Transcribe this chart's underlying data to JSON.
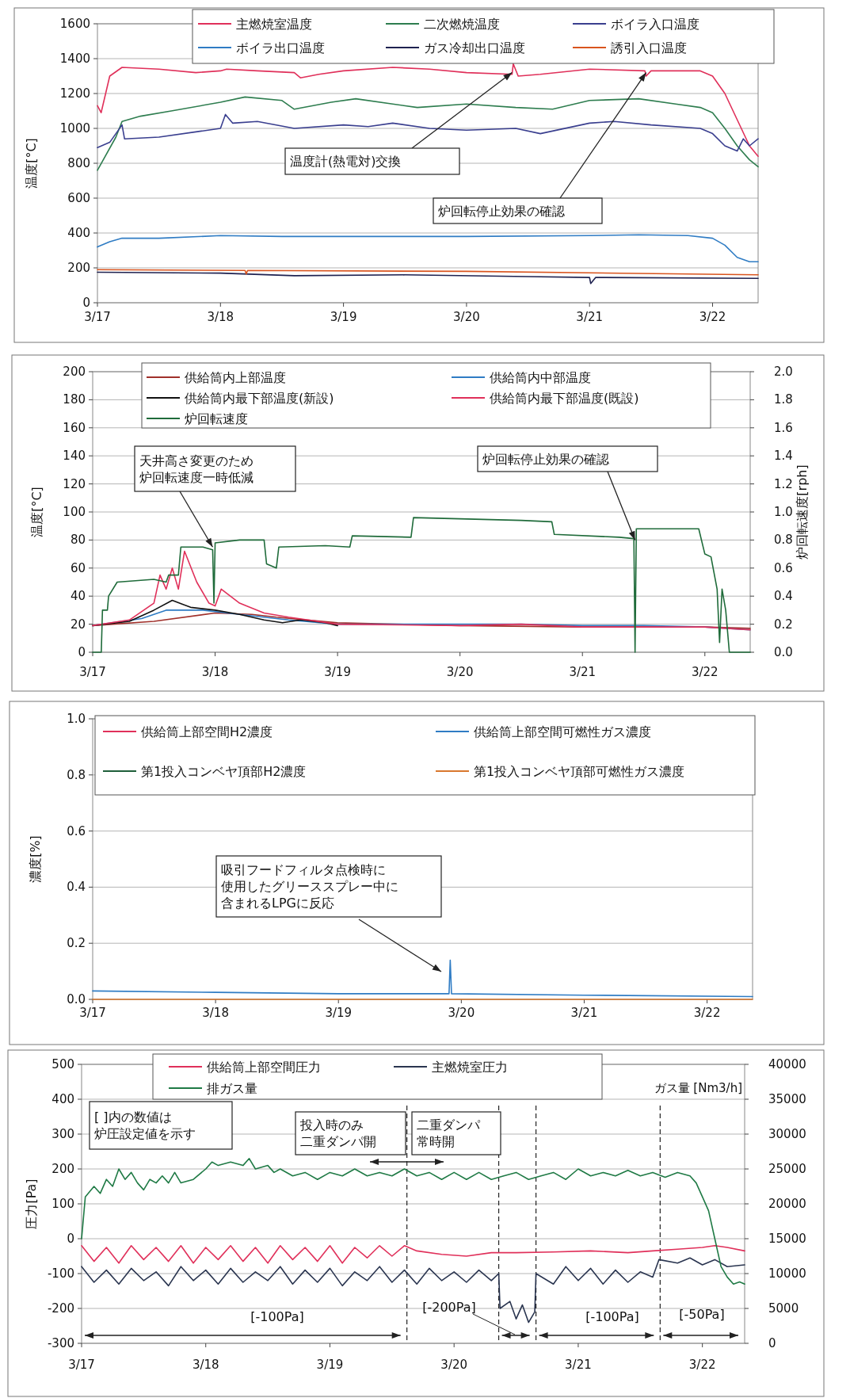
{
  "chart_data": [
    {
      "type": "line",
      "ylabel": "温度[°C]",
      "xlim": [
        "--03-17T00:00",
        "--03-22T08:53"
      ],
      "ylim": [
        0,
        1600
      ],
      "yticks": [
        0,
        200,
        400,
        600,
        800,
        1000,
        1200,
        1400,
        1600
      ],
      "xticks": [
        {
          "value": "--03-17",
          "label": "3/17"
        },
        {
          "value": "--03-18",
          "label": "3/18"
        },
        {
          "value": "--03-19",
          "label": "3/19"
        },
        {
          "value": "--03-20",
          "label": "3/20"
        },
        {
          "value": "--03-21",
          "label": "3/21"
        },
        {
          "value": "--03-22",
          "label": "3/22"
        }
      ],
      "grid": "y",
      "legend": "top",
      "series": [
        {
          "name": "主燃焼室温度",
          "color": "#e0305a",
          "x": [
            "--03-17T00:00",
            "--03-17T00:43",
            "--03-17T02:24",
            "--03-17T04:48",
            "--03-17T12:00",
            "--03-17T19:12",
            "--03-18T00:00",
            "--03-18T01:12",
            "--03-18T07:12",
            "--03-18T14:24",
            "--03-18T15:36",
            "--03-18T19:12",
            "--03-19T00:00",
            "--03-19T09:36",
            "--03-19T16:48",
            "--03-20T00:00",
            "--03-20T08:53",
            "--03-20T09:07",
            "--03-20T10:05",
            "--03-20T14:24",
            "--03-21T00:00",
            "--03-21T10:48",
            "--03-21T11:02",
            "--03-21T12:00",
            "--03-21T21:36",
            "--03-22T00:00",
            "--03-22T02:24",
            "--03-22T04:48",
            "--03-22T07:12",
            "--03-22T08:53"
          ],
          "values": [
            1130,
            1090,
            1300,
            1350,
            1340,
            1320,
            1330,
            1340,
            1330,
            1320,
            1290,
            1310,
            1330,
            1350,
            1340,
            1320,
            1310,
            1370,
            1300,
            1310,
            1340,
            1330,
            1300,
            1330,
            1330,
            1300,
            1200,
            1050,
            900,
            840
          ]
        },
        {
          "name": "二次燃焼温度",
          "color": "#2e7d4f",
          "x": [
            "--03-17T00:00",
            "--03-17T03:36",
            "--03-17T04:48",
            "--03-17T08:24",
            "--03-17T14:24",
            "--03-18T00:00",
            "--03-18T04:48",
            "--03-18T12:00",
            "--03-18T14:24",
            "--03-18T21:36",
            "--03-19T02:24",
            "--03-19T09:36",
            "--03-19T14:24",
            "--03-20T00:00",
            "--03-20T09:36",
            "--03-20T16:48",
            "--03-21T00:00",
            "--03-21T09:36",
            "--03-21T16:48",
            "--03-21T21:36",
            "--03-22T00:00",
            "--03-22T02:24",
            "--03-22T04:48",
            "--03-22T07:12",
            "--03-22T08:53"
          ],
          "values": [
            760,
            950,
            1040,
            1070,
            1100,
            1150,
            1180,
            1160,
            1110,
            1150,
            1170,
            1140,
            1120,
            1140,
            1120,
            1110,
            1160,
            1170,
            1140,
            1120,
            1090,
            1000,
            900,
            820,
            780
          ]
        },
        {
          "name": "ボイラ入口温度",
          "color": "#3a3f8f",
          "x": [
            "--03-17T00:00",
            "--03-17T02:24",
            "--03-17T04:48",
            "--03-17T05:17",
            "--03-17T12:00",
            "--03-17T19:12",
            "--03-18T00:00",
            "--03-18T00:58",
            "--03-18T02:24",
            "--03-18T07:12",
            "--03-18T14:24",
            "--03-19T00:00",
            "--03-19T04:48",
            "--03-19T09:36",
            "--03-19T16:48",
            "--03-20T00:00",
            "--03-20T09:36",
            "--03-20T14:24",
            "--03-21T00:00",
            "--03-21T04:48",
            "--03-21T12:00",
            "--03-21T21:36",
            "--03-22T00:00",
            "--03-22T02:24",
            "--03-22T04:48",
            "--03-22T06:00",
            "--03-22T07:12",
            "--03-22T08:53"
          ],
          "values": [
            890,
            920,
            1020,
            940,
            950,
            980,
            1000,
            1080,
            1030,
            1040,
            1000,
            1020,
            1010,
            1030,
            1000,
            990,
            1000,
            970,
            1030,
            1040,
            1020,
            1000,
            970,
            900,
            870,
            940,
            900,
            940
          ]
        },
        {
          "name": "ボイラ出口温度",
          "color": "#2f7cc4",
          "x": [
            "--03-17T00:00",
            "--03-17T02:24",
            "--03-17T04:48",
            "--03-17T12:00",
            "--03-18T00:00",
            "--03-18T12:00",
            "--03-19T00:00",
            "--03-20T00:00",
            "--03-21T00:00",
            "--03-21T09:36",
            "--03-21T19:12",
            "--03-22T00:00",
            "--03-22T02:24",
            "--03-22T04:48",
            "--03-22T07:12",
            "--03-22T08:53"
          ],
          "values": [
            320,
            350,
            370,
            370,
            385,
            380,
            380,
            380,
            385,
            390,
            385,
            370,
            330,
            260,
            235,
            235
          ]
        },
        {
          "name": "ガス冷却出口温度",
          "color": "#1f2250",
          "x": [
            "--03-17T00:00",
            "--03-18T00:00",
            "--03-18T14:24",
            "--03-19T12:00",
            "--03-20T12:00",
            "--03-21T00:00",
            "--03-21T00:14",
            "--03-21T01:12",
            "--03-22T08:53"
          ],
          "values": [
            175,
            170,
            155,
            160,
            150,
            145,
            110,
            145,
            140
          ]
        },
        {
          "name": "誘引入口温度",
          "color": "#d9541e",
          "x": [
            "--03-17T00:00",
            "--03-18T04:48",
            "--03-18T05:02",
            "--03-18T05:17",
            "--03-20T00:00",
            "--03-22T08:53"
          ],
          "values": [
            190,
            185,
            165,
            185,
            180,
            160
          ]
        }
      ],
      "annotations": [
        {
          "text": "温度計(熱電対)交換",
          "x": "--03-20T08:53",
          "y": 1320
        },
        {
          "text": "炉回転停止効果の確認",
          "x": "--03-21T11:02",
          "y": 1320
        }
      ]
    },
    {
      "type": "line",
      "ylabel": "温度[°C]",
      "y2label": "炉回転速度[rph]",
      "xlim": [
        "--03-17T00:00",
        "--03-22T08:53"
      ],
      "ylim": [
        0,
        200
      ],
      "yticks": [
        0,
        20,
        40,
        60,
        80,
        100,
        120,
        140,
        160,
        180,
        200
      ],
      "y2lim": [
        0,
        2
      ],
      "y2ticks": [
        {
          "value": 0,
          "label": "0.0"
        },
        {
          "value": 0.2,
          "label": "0.2"
        },
        {
          "value": 0.4,
          "label": "0.4"
        },
        {
          "value": 0.6,
          "label": "0.6"
        },
        {
          "value": 0.8,
          "label": "0.8"
        },
        {
          "value": 1,
          "label": "1.0"
        },
        {
          "value": 1.2,
          "label": "1.2"
        },
        {
          "value": 1.4,
          "label": "1.4"
        },
        {
          "value": 1.6,
          "label": "1.6"
        },
        {
          "value": 1.8,
          "label": "1.8"
        },
        {
          "value": 2,
          "label": "2.0"
        }
      ],
      "xticks": [
        {
          "value": "--03-17",
          "label": "3/17"
        },
        {
          "value": "--03-18",
          "label": "3/18"
        },
        {
          "value": "--03-19",
          "label": "3/19"
        },
        {
          "value": "--03-20",
          "label": "3/20"
        },
        {
          "value": "--03-21",
          "label": "3/21"
        },
        {
          "value": "--03-22",
          "label": "3/22"
        }
      ],
      "grid": "y",
      "legend": "top",
      "series": [
        {
          "name": "供給筒内上部温度",
          "color": "#a0302a",
          "x": [
            "--03-17T00:00",
            "--03-17T12:00",
            "--03-18T00:00",
            "--03-18T07:12",
            "--03-18T12:00",
            "--03-19T00:00",
            "--03-20T00:00",
            "--03-21T00:00",
            "--03-22T00:00",
            "--03-22T08:53"
          ],
          "values": [
            19,
            22,
            28,
            27,
            25,
            21,
            19,
            18,
            18,
            17
          ]
        },
        {
          "name": "供給筒内中部温度",
          "color": "#2f7cc4",
          "x": [
            "--03-17T00:00",
            "--03-17T09:36",
            "--03-17T14:24",
            "--03-17T21:36",
            "--03-18T04:48",
            "--03-18T14:24",
            "--03-19T00:00",
            "--03-19T12:00",
            "--03-20T00:00",
            "--03-20T12:00",
            "--03-21T00:00",
            "--03-21T12:00",
            "--03-22T00:00",
            "--03-22T08:53"
          ],
          "values": [
            19,
            24,
            30,
            30,
            27,
            23,
            20,
            20,
            20,
            20,
            19,
            19,
            18,
            16
          ]
        },
        {
          "name": "供給筒内最下部温度(新設)",
          "color": "#111111",
          "x": [
            "--03-17T00:00",
            "--03-17T07:12",
            "--03-17T12:00",
            "--03-17T15:36",
            "--03-17T19:12",
            "--03-18T00:00",
            "--03-18T04:48",
            "--03-18T09:36",
            "--03-18T13:12",
            "--03-18T16:48",
            "--03-18T21:36",
            "--03-19T00:00"
          ],
          "values": [
            19,
            22,
            30,
            37,
            32,
            30,
            27,
            23,
            21,
            23,
            21,
            19
          ]
        },
        {
          "name": "供給筒内最下部温度(既設)",
          "color": "#e0305a",
          "x": [
            "--03-17T00:00",
            "--03-17T07:12",
            "--03-17T12:00",
            "--03-17T13:12",
            "--03-17T14:24",
            "--03-17T15:36",
            "--03-17T16:48",
            "--03-17T18:00",
            "--03-17T20:24",
            "--03-17T22:48",
            "--03-18T00:00",
            "--03-18T01:12",
            "--03-18T04:48",
            "--03-18T09:36",
            "--03-18T14:24",
            "--03-19T00:00",
            "--03-20T00:00",
            "--03-20T12:00",
            "--03-21T00:00",
            "--03-21T12:00",
            "--03-22T00:00",
            "--03-22T08:53"
          ],
          "values": [
            19,
            23,
            35,
            55,
            45,
            60,
            45,
            72,
            50,
            35,
            33,
            45,
            35,
            28,
            25,
            20,
            19,
            20,
            18,
            18,
            18,
            16
          ]
        },
        {
          "name": "炉回転速度",
          "color": "#1f6b3a",
          "axis": "y2",
          "x": [
            "--03-17T00:00",
            "--03-17T01:41",
            "--03-17T01:55",
            "--03-17T02:53",
            "--03-17T03:07",
            "--03-17T04:48",
            "--03-17T12:00",
            "--03-17T14:24",
            "--03-17T14:53",
            "--03-17T16:48",
            "--03-17T17:17",
            "--03-17T21:36",
            "--03-17T23:31",
            "--03-17T23:46",
            "--03-18T00:00",
            "--03-18T04:48",
            "--03-18T09:36",
            "--03-18T10:05",
            "--03-18T12:00",
            "--03-18T12:29",
            "--03-18T21:36",
            "--03-19T02:24",
            "--03-19T02:53",
            "--03-19T14:24",
            "--03-19T14:53",
            "--03-20T12:00",
            "--03-20T18:00",
            "--03-20T18:29",
            "--03-21T07:12",
            "--03-21T10:05",
            "--03-21T10:19",
            "--03-21T10:34",
            "--03-21T22:48",
            "--03-22T00:00",
            "--03-22T01:12",
            "--03-22T02:24",
            "--03-22T02:53",
            "--03-22T03:22",
            "--03-22T04:05",
            "--03-22T04:48",
            "--03-22T08:53"
          ],
          "values": [
            0,
            0,
            0.3,
            0.3,
            0.4,
            0.5,
            0.52,
            0.5,
            0.55,
            0.55,
            0.75,
            0.75,
            0.73,
            0.35,
            0.78,
            0.8,
            0.8,
            0.63,
            0.6,
            0.75,
            0.76,
            0.75,
            0.83,
            0.82,
            0.96,
            0.94,
            0.93,
            0.84,
            0.82,
            0.81,
            0,
            0.88,
            0.88,
            0.7,
            0.68,
            0.45,
            0.07,
            0.45,
            0.3,
            0,
            0
          ]
        }
      ],
      "annotations": [
        {
          "text": "天井高さ変更のため炉回転速度一時低減",
          "x": "--03-17T23:31",
          "y": 75
        },
        {
          "text": "炉回転停止効果の確認",
          "x": "--03-21T10:19",
          "y": 80
        }
      ]
    },
    {
      "type": "line",
      "ylabel": "濃度[%]",
      "xlim": [
        "--03-17T00:00",
        "--03-22T08:53"
      ],
      "ylim": [
        0,
        1
      ],
      "yticks": [
        {
          "value": 0,
          "label": "0.0"
        },
        {
          "value": 0.2,
          "label": "0.2"
        },
        {
          "value": 0.4,
          "label": "0.4"
        },
        {
          "value": 0.6,
          "label": "0.6"
        },
        {
          "value": 0.8,
          "label": "0.8"
        },
        {
          "value": 1,
          "label": "1.0"
        }
      ],
      "xticks": [
        {
          "value": "--03-17",
          "label": "3/17"
        },
        {
          "value": "--03-18",
          "label": "3/18"
        },
        {
          "value": "--03-19",
          "label": "3/19"
        },
        {
          "value": "--03-20",
          "label": "3/20"
        },
        {
          "value": "--03-21",
          "label": "3/21"
        },
        {
          "value": "--03-22",
          "label": "3/22"
        }
      ],
      "grid": "y",
      "legend": "top",
      "series": [
        {
          "name": "供給筒上部空間H2濃度",
          "color": "#e0305a"
        },
        {
          "name": "供給筒上部空間可燃性ガス濃度",
          "color": "#2f7cc4",
          "x": [
            "--03-17T00:00",
            "--03-18T00:00",
            "--03-19T00:00",
            "--03-19T21:36",
            "--03-19T21:50",
            "--03-19T22:05",
            "--03-21T00:00",
            "--03-22T08:53"
          ],
          "values": [
            0.03,
            0.025,
            0.02,
            0.02,
            0.14,
            0.02,
            0.015,
            0.01
          ]
        },
        {
          "name": "第1投入コンベヤ頂部H2濃度",
          "color": "#1f5f3a"
        },
        {
          "name": "第1投入コンベヤ頂部可燃性ガス濃度",
          "color": "#d9782e",
          "x": [
            "--03-17T00:00",
            "--03-22T08:53"
          ],
          "values": [
            0,
            0
          ]
        }
      ],
      "annotations": [
        "吸引フードフィルタ点検時に使用したグリーススプレー中に含まれるLPGに反応"
      ]
    },
    {
      "type": "line",
      "ylabel": "圧力[Pa]",
      "y2label": "ガス量 [Nm3/h]",
      "xlim": [
        "--03-17T00:00",
        "--03-22T08:10"
      ],
      "ylim": [
        -300,
        500
      ],
      "yticks": [
        -300,
        -200,
        -100,
        0,
        100,
        200,
        300,
        400,
        500
      ],
      "y2lim": [
        0,
        40000
      ],
      "y2ticks": [
        0,
        5000,
        10000,
        15000,
        20000,
        25000,
        30000,
        35000,
        40000
      ],
      "xticks": [
        {
          "value": "--03-17",
          "label": "3/17"
        },
        {
          "value": "--03-18",
          "label": "3/18"
        },
        {
          "value": "--03-19",
          "label": "3/19"
        },
        {
          "value": "--03-20",
          "label": "3/20"
        },
        {
          "value": "--03-21",
          "label": "3/21"
        },
        {
          "value": "--03-22",
          "label": "3/22"
        }
      ],
      "grid": "y",
      "legend": "top",
      "series": [
        {
          "name": "供給筒上部空間圧力",
          "color": "#e0305a",
          "x": [
            "--03-17T00:00",
            "--03-17T02:24",
            "--03-17T04:48",
            "--03-17T07:12",
            "--03-17T09:36",
            "--03-17T12:00",
            "--03-17T14:24",
            "--03-17T16:48",
            "--03-17T19:12",
            "--03-17T21:36",
            "--03-18T00:00",
            "--03-18T02:24",
            "--03-18T04:48",
            "--03-18T07:12",
            "--03-18T09:36",
            "--03-18T12:00",
            "--03-18T14:24",
            "--03-18T16:48",
            "--03-18T19:12",
            "--03-18T21:36",
            "--03-19T00:00",
            "--03-19T02:24",
            "--03-19T04:48",
            "--03-19T07:12",
            "--03-19T09:36",
            "--03-19T12:00",
            "--03-19T14:24",
            "--03-19T16:48",
            "--03-19T21:36",
            "--03-20T02:24",
            "--03-20T07:12",
            "--03-20T12:00",
            "--03-20T19:12",
            "--03-21T02:24",
            "--03-21T09:36",
            "--03-21T14:24",
            "--03-21T19:12",
            "--03-22T00:00",
            "--03-22T02:24",
            "--03-22T04:48",
            "--03-22T08:10"
          ],
          "values": [
            -20,
            -65,
            -25,
            -70,
            -20,
            -60,
            -25,
            -65,
            -20,
            -70,
            -25,
            -60,
            -20,
            -65,
            -25,
            -70,
            -20,
            -60,
            -25,
            -65,
            -20,
            -70,
            -25,
            -55,
            -20,
            -50,
            -20,
            -35,
            -45,
            -50,
            -40,
            -40,
            -38,
            -35,
            -40,
            -35,
            -30,
            -25,
            -20,
            -25,
            -35
          ]
        },
        {
          "name": "主燃焼室圧力",
          "color": "#2a3550",
          "x": [
            "--03-17T00:00",
            "--03-17T02:24",
            "--03-17T04:48",
            "--03-17T07:12",
            "--03-17T09:36",
            "--03-17T12:00",
            "--03-17T14:24",
            "--03-17T16:48",
            "--03-17T19:12",
            "--03-17T21:36",
            "--03-18T00:00",
            "--03-18T02:24",
            "--03-18T04:48",
            "--03-18T07:12",
            "--03-18T09:36",
            "--03-18T12:00",
            "--03-18T14:24",
            "--03-18T16:48",
            "--03-18T19:12",
            "--03-18T21:36",
            "--03-19T00:00",
            "--03-19T02:24",
            "--03-19T04:48",
            "--03-19T07:12",
            "--03-19T09:36",
            "--03-19T12:00",
            "--03-19T14:24",
            "--03-19T16:48",
            "--03-19T19:12",
            "--03-19T21:36",
            "--03-20T00:00",
            "--03-20T02:24",
            "--03-20T04:48",
            "--03-20T07:12",
            "--03-20T08:38",
            "--03-20T08:53",
            "--03-20T10:48",
            "--03-20T12:00",
            "--03-20T13:12",
            "--03-20T14:24",
            "--03-20T15:36",
            "--03-20T15:50",
            "--03-20T19:12",
            "--03-20T21:36",
            "--03-21T00:00",
            "--03-21T02:24",
            "--03-21T04:48",
            "--03-21T07:12",
            "--03-21T09:36",
            "--03-21T12:00",
            "--03-21T14:24",
            "--03-21T15:36",
            "--03-21T19:12",
            "--03-21T21:36",
            "--03-22T00:00",
            "--03-22T02:24",
            "--03-22T04:48",
            "--03-22T08:10"
          ],
          "values": [
            -80,
            -125,
            -90,
            -130,
            -85,
            -120,
            -95,
            -135,
            -80,
            -120,
            -90,
            -130,
            -85,
            -125,
            -95,
            -120,
            -80,
            -130,
            -90,
            -125,
            -85,
            -135,
            -95,
            -120,
            -80,
            -125,
            -90,
            -130,
            -85,
            -120,
            -95,
            -125,
            -90,
            -120,
            -100,
            -200,
            -180,
            -230,
            -190,
            -240,
            -210,
            -100,
            -130,
            -80,
            -120,
            -85,
            -130,
            -90,
            -125,
            -95,
            -110,
            -60,
            -70,
            -55,
            -75,
            -60,
            -80,
            -75
          ]
        },
        {
          "name": "排ガス量",
          "color": "#1f7a45",
          "axis": "y2",
          "x": [
            "--03-17T00:00",
            "--03-17T00:43",
            "--03-17T02:24",
            "--03-17T03:36",
            "--03-17T04:48",
            "--03-17T06:00",
            "--03-17T07:12",
            "--03-17T08:24",
            "--03-17T09:36",
            "--03-17T10:48",
            "--03-17T12:00",
            "--03-17T13:12",
            "--03-17T14:24",
            "--03-17T15:36",
            "--03-17T16:48",
            "--03-17T18:00",
            "--03-17T19:12",
            "--03-17T21:36",
            "--03-18T00:00",
            "--03-18T01:12",
            "--03-18T02:24",
            "--03-18T04:48",
            "--03-18T07:12",
            "--03-18T08:24",
            "--03-18T09:36",
            "--03-18T12:00",
            "--03-18T13:12",
            "--03-18T14:24",
            "--03-18T16:48",
            "--03-18T19:12",
            "--03-18T21:36",
            "--03-19T00:00",
            "--03-19T02:24",
            "--03-19T04:48",
            "--03-19T07:12",
            "--03-19T09:36",
            "--03-19T12:00",
            "--03-19T14:24",
            "--03-19T16:48",
            "--03-19T19:12",
            "--03-19T21:36",
            "--03-20T00:00",
            "--03-20T02:24",
            "--03-20T04:48",
            "--03-20T07:12",
            "--03-20T09:36",
            "--03-20T12:00",
            "--03-20T14:24",
            "--03-20T16:48",
            "--03-20T19:12",
            "--03-20T21:36",
            "--03-21T00:00",
            "--03-21T02:24",
            "--03-21T04:48",
            "--03-21T07:12",
            "--03-21T09:36",
            "--03-21T12:00",
            "--03-21T14:24",
            "--03-21T16:48",
            "--03-21T19:12",
            "--03-21T21:36",
            "--03-21T22:48",
            "--03-22T00:00",
            "--03-22T01:12",
            "--03-22T02:24",
            "--03-22T03:36",
            "--03-22T04:48",
            "--03-22T06:00",
            "--03-22T07:12",
            "--03-22T08:10"
          ],
          "values": [
            15000,
            21000,
            22500,
            21500,
            23500,
            22500,
            25000,
            23500,
            24500,
            23000,
            22000,
            23500,
            23000,
            24000,
            23000,
            24500,
            23000,
            23500,
            25000,
            26000,
            25500,
            26000,
            25500,
            26500,
            25000,
            25500,
            24500,
            25000,
            24000,
            24500,
            23500,
            24500,
            24000,
            25000,
            24000,
            24500,
            24000,
            25000,
            24000,
            24500,
            23500,
            24500,
            23500,
            24500,
            23500,
            24000,
            24500,
            23500,
            24000,
            24500,
            23500,
            25000,
            24000,
            24500,
            24000,
            24800,
            24000,
            24500,
            23800,
            24500,
            24000,
            23000,
            21000,
            19000,
            15000,
            11000,
            9500,
            8500,
            8800,
            8500
          ]
        }
      ],
      "ref_lines": [
        {
          "axis": "x",
          "value": "--03-19T14:53",
          "line_style": "dashed"
        },
        {
          "axis": "x",
          "value": "--03-20T08:38",
          "line_style": "dashed"
        },
        {
          "axis": "x",
          "value": "--03-20T15:50",
          "line_style": "dashed"
        },
        {
          "axis": "x",
          "value": "--03-21T15:50",
          "line_style": "dashed"
        }
      ],
      "annotations": [
        "[ ]内の数値は炉圧設定値を示す",
        "投入時のみ二重ダンパ開",
        "二重ダンパ常時開",
        "[-100Pa]",
        "[-200Pa]",
        "[-100Pa]",
        "[-50Pa]"
      ]
    }
  ]
}
